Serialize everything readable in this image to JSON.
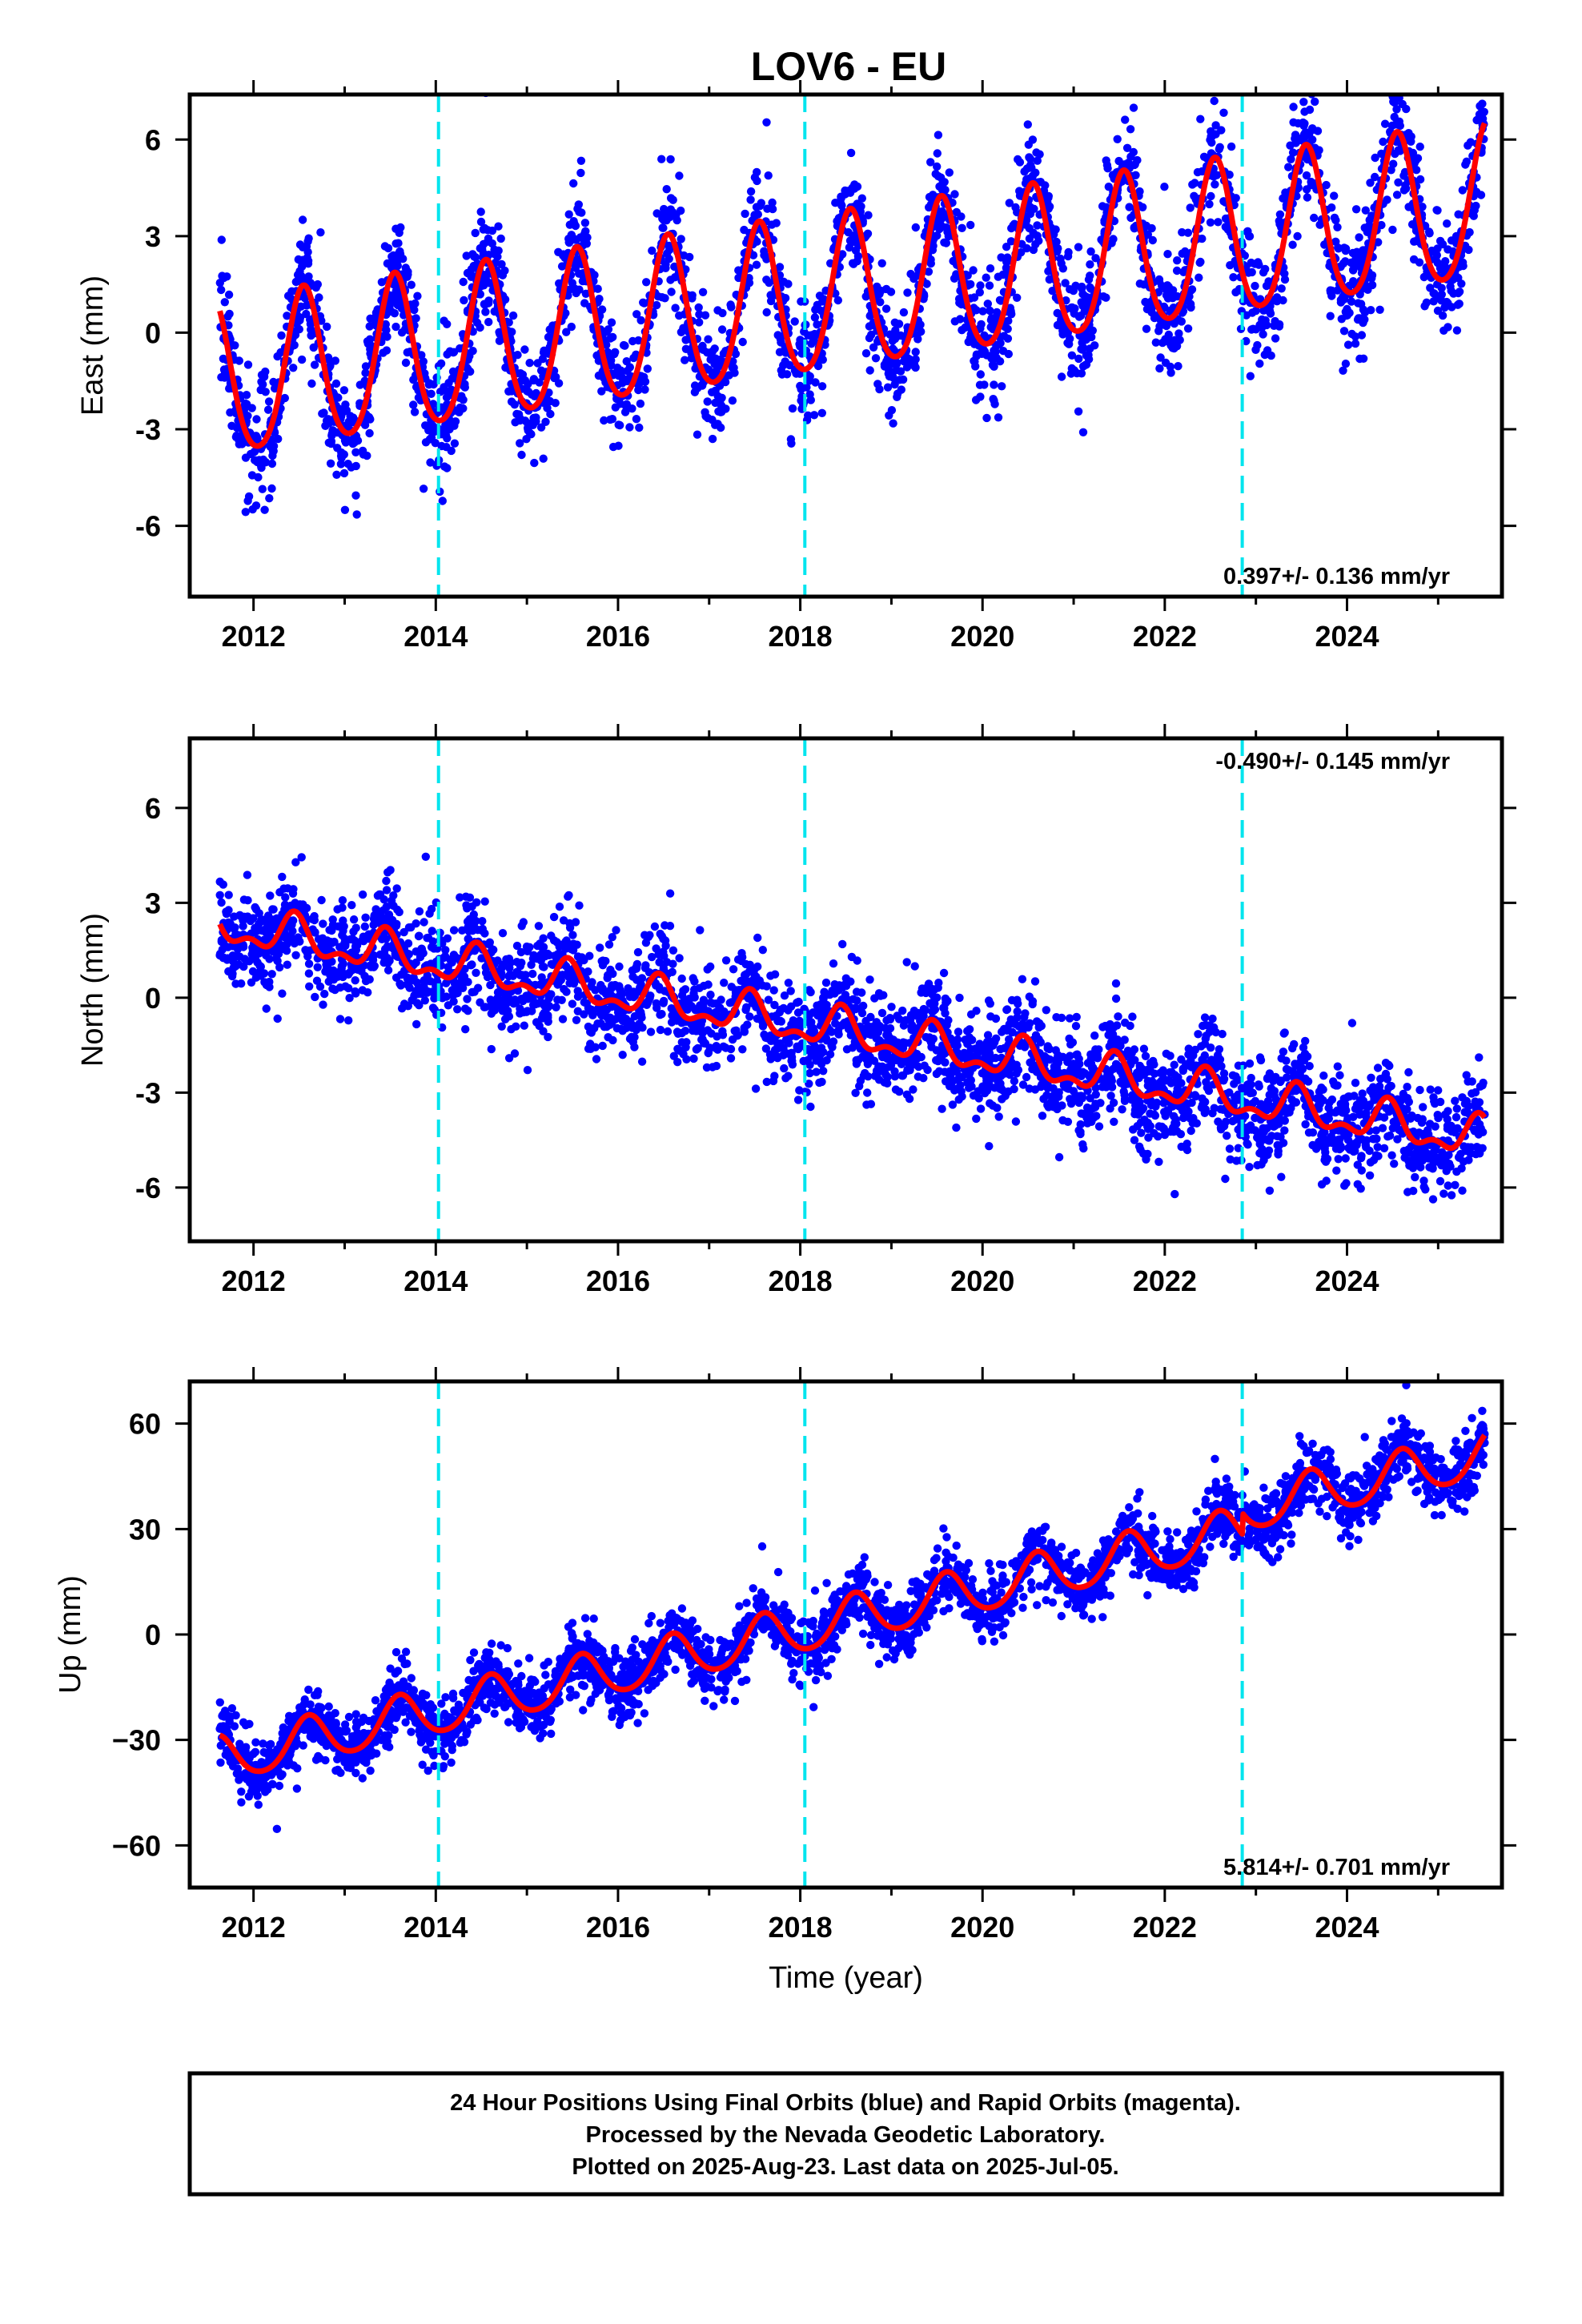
{
  "title": "LOV6 - EU",
  "colors": {
    "final_orbits": "#0000ff",
    "rapid_orbits": "#ff00ff",
    "model": "#ff0000",
    "event_lines": "#00e5ee",
    "frame": "#000000"
  },
  "caption": {
    "line1": "24 Hour Positions Using Final Orbits (blue) and Rapid Orbits (magenta).",
    "line2": "Processed by the Nevada Geodetic Laboratory.",
    "line3": "Plotted on 2025-Aug-23. Last data on 2025-Jul-05."
  },
  "chart_data": [
    {
      "type": "scatter",
      "component": "east",
      "ylabel": "East (mm)",
      "xlabel": "",
      "rate_text": "0.397+/- 0.136 mm/yr",
      "rate_position": "bottom-right",
      "xlim": [
        2011.3,
        2025.7
      ],
      "ylim": [
        -8.2,
        7.4
      ],
      "x_ticks": [
        "2012",
        "2014",
        "2016",
        "2018",
        "2020",
        "2022",
        "2024"
      ],
      "y_ticks": [
        "6",
        "3",
        "0",
        "-3",
        "-6"
      ],
      "y_tick_values": [
        6,
        3,
        0,
        -3,
        -6
      ],
      "event_lines": [
        2014.03,
        2018.05,
        2022.85
      ],
      "data_range": [
        2011.63,
        2025.51
      ],
      "model_fit": {
        "offset_at_2011_6": -1.6,
        "rate_mm_per_yr": 0.397,
        "annual_amplitude": 2.4,
        "annual_peak_month_fraction": 0.55,
        "semiannual_amplitude": 0.3,
        "offsets": [],
        "scatter_sigma": 0.9
      }
    },
    {
      "type": "scatter",
      "component": "north",
      "ylabel": "North (mm)",
      "xlabel": "",
      "rate_text": "-0.490+/- 0.145 mm/yr",
      "rate_position": "top-right",
      "xlim": [
        2011.3,
        2025.7
      ],
      "ylim": [
        -7.7,
        8.2
      ],
      "x_ticks": [
        "2012",
        "2014",
        "2016",
        "2018",
        "2020",
        "2022",
        "2024"
      ],
      "y_ticks": [
        "6",
        "3",
        "0",
        "-3",
        "-6"
      ],
      "y_tick_values": [
        6,
        3,
        0,
        -3,
        -6
      ],
      "event_lines": [
        2014.03,
        2018.05,
        2022.85
      ],
      "data_range": [
        2011.63,
        2025.51
      ],
      "model_fit": {
        "offset_at_2011_6": 2.3,
        "rate_mm_per_yr": -0.49,
        "annual_amplitude": 0.55,
        "annual_peak_month_fraction": 0.45,
        "semiannual_amplitude": 0.3,
        "offsets": [],
        "scatter_sigma": 0.8
      }
    },
    {
      "type": "scatter",
      "component": "up",
      "ylabel": "Up (mm)",
      "xlabel": "Time (year)",
      "rate_text": "5.814+/- 0.701 mm/yr",
      "rate_position": "bottom-right",
      "xlim": [
        2011.3,
        2025.7
      ],
      "ylim": [
        -72,
        72
      ],
      "x_ticks": [
        "2012",
        "2014",
        "2016",
        "2018",
        "2020",
        "2022",
        "2024"
      ],
      "y_ticks": [
        "60",
        "30",
        "0",
        "−30",
        "−60"
      ],
      "y_tick_values": [
        60,
        30,
        0,
        -30,
        -60
      ],
      "event_lines": [
        2014.03,
        2018.05,
        2022.85
      ],
      "data_range": [
        2011.63,
        2025.51
      ],
      "model_fit": {
        "offset_at_2011_6": -36,
        "rate_mm_per_yr": 5.814,
        "annual_amplitude": 6.5,
        "annual_peak_month_fraction": 0.6,
        "semiannual_amplitude": 0.8,
        "offsets": [
          {
            "year": 2022.85,
            "size": 6
          }
        ],
        "scatter_sigma": 4.5
      }
    }
  ]
}
